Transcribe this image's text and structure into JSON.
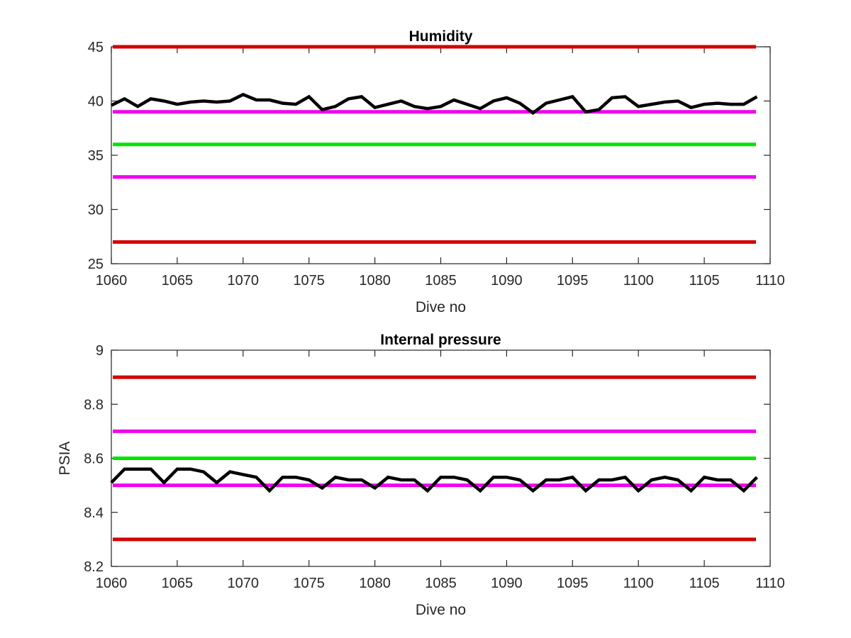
{
  "chart_data": [
    {
      "type": "line",
      "title": "Humidity",
      "xlabel": "Dive no",
      "ylabel": "",
      "xlim": [
        1060,
        1110
      ],
      "ylim": [
        25,
        45
      ],
      "xticks": [
        1060,
        1065,
        1070,
        1075,
        1080,
        1085,
        1090,
        1095,
        1100,
        1105,
        1110
      ],
      "yticks": [
        25,
        30,
        35,
        40,
        45
      ],
      "grid": false,
      "reference_lines": [
        {
          "y": 45,
          "color": "#d40000"
        },
        {
          "y": 39,
          "color": "#f000f0"
        },
        {
          "y": 36,
          "color": "#00e600"
        },
        {
          "y": 33,
          "color": "#f000f0"
        },
        {
          "y": 27,
          "color": "#d40000"
        }
      ],
      "series": [
        {
          "color": "#000000",
          "x": [
            1060,
            1061,
            1062,
            1063,
            1064,
            1065,
            1066,
            1067,
            1068,
            1069,
            1070,
            1071,
            1072,
            1073,
            1074,
            1075,
            1076,
            1077,
            1078,
            1079,
            1080,
            1081,
            1082,
            1083,
            1084,
            1085,
            1086,
            1087,
            1088,
            1089,
            1090,
            1091,
            1092,
            1093,
            1094,
            1095,
            1096,
            1097,
            1098,
            1099,
            1100,
            1101,
            1102,
            1103,
            1104,
            1105,
            1106,
            1107,
            1108,
            1109
          ],
          "y": [
            39.6,
            40.2,
            39.5,
            40.2,
            40.0,
            39.7,
            39.9,
            40.0,
            39.9,
            40.0,
            40.6,
            40.1,
            40.1,
            39.8,
            39.7,
            40.4,
            39.2,
            39.5,
            40.2,
            40.4,
            39.4,
            39.7,
            40.0,
            39.5,
            39.3,
            39.5,
            40.1,
            39.7,
            39.3,
            40.0,
            40.3,
            39.8,
            38.9,
            39.8,
            40.1,
            40.4,
            39.0,
            39.2,
            40.3,
            40.4,
            39.5,
            39.7,
            39.9,
            40.0,
            39.4,
            39.7,
            39.8,
            39.7,
            39.7,
            40.4
          ]
        }
      ]
    },
    {
      "type": "line",
      "title": "Internal pressure",
      "xlabel": "Dive no",
      "ylabel": "PSIA",
      "xlim": [
        1060,
        1110
      ],
      "ylim": [
        8.2,
        9.0
      ],
      "xticks": [
        1060,
        1065,
        1070,
        1075,
        1080,
        1085,
        1090,
        1095,
        1100,
        1105,
        1110
      ],
      "yticks": [
        8.2,
        8.4,
        8.6,
        8.8,
        9.0
      ],
      "ytick_labels": [
        "8.2",
        "8.4",
        "8.6",
        "8.8",
        "9"
      ],
      "grid": false,
      "reference_lines": [
        {
          "y": 8.9,
          "color": "#d40000"
        },
        {
          "y": 8.7,
          "color": "#f000f0"
        },
        {
          "y": 8.6,
          "color": "#00e600"
        },
        {
          "y": 8.5,
          "color": "#f000f0"
        },
        {
          "y": 8.3,
          "color": "#d40000"
        }
      ],
      "series": [
        {
          "color": "#000000",
          "x": [
            1060,
            1061,
            1062,
            1063,
            1064,
            1065,
            1066,
            1067,
            1068,
            1069,
            1070,
            1071,
            1072,
            1073,
            1074,
            1075,
            1076,
            1077,
            1078,
            1079,
            1080,
            1081,
            1082,
            1083,
            1084,
            1085,
            1086,
            1087,
            1088,
            1089,
            1090,
            1091,
            1092,
            1093,
            1094,
            1095,
            1096,
            1097,
            1098,
            1099,
            1100,
            1101,
            1102,
            1103,
            1104,
            1105,
            1106,
            1107,
            1108,
            1109
          ],
          "y": [
            8.51,
            8.56,
            8.56,
            8.56,
            8.51,
            8.56,
            8.56,
            8.55,
            8.51,
            8.55,
            8.54,
            8.53,
            8.48,
            8.53,
            8.53,
            8.52,
            8.49,
            8.53,
            8.52,
            8.52,
            8.49,
            8.53,
            8.52,
            8.52,
            8.48,
            8.53,
            8.53,
            8.52,
            8.48,
            8.53,
            8.53,
            8.52,
            8.48,
            8.52,
            8.52,
            8.53,
            8.48,
            8.52,
            8.52,
            8.53,
            8.48,
            8.52,
            8.53,
            8.52,
            8.48,
            8.53,
            8.52,
            8.52,
            8.48,
            8.53
          ]
        }
      ]
    }
  ]
}
